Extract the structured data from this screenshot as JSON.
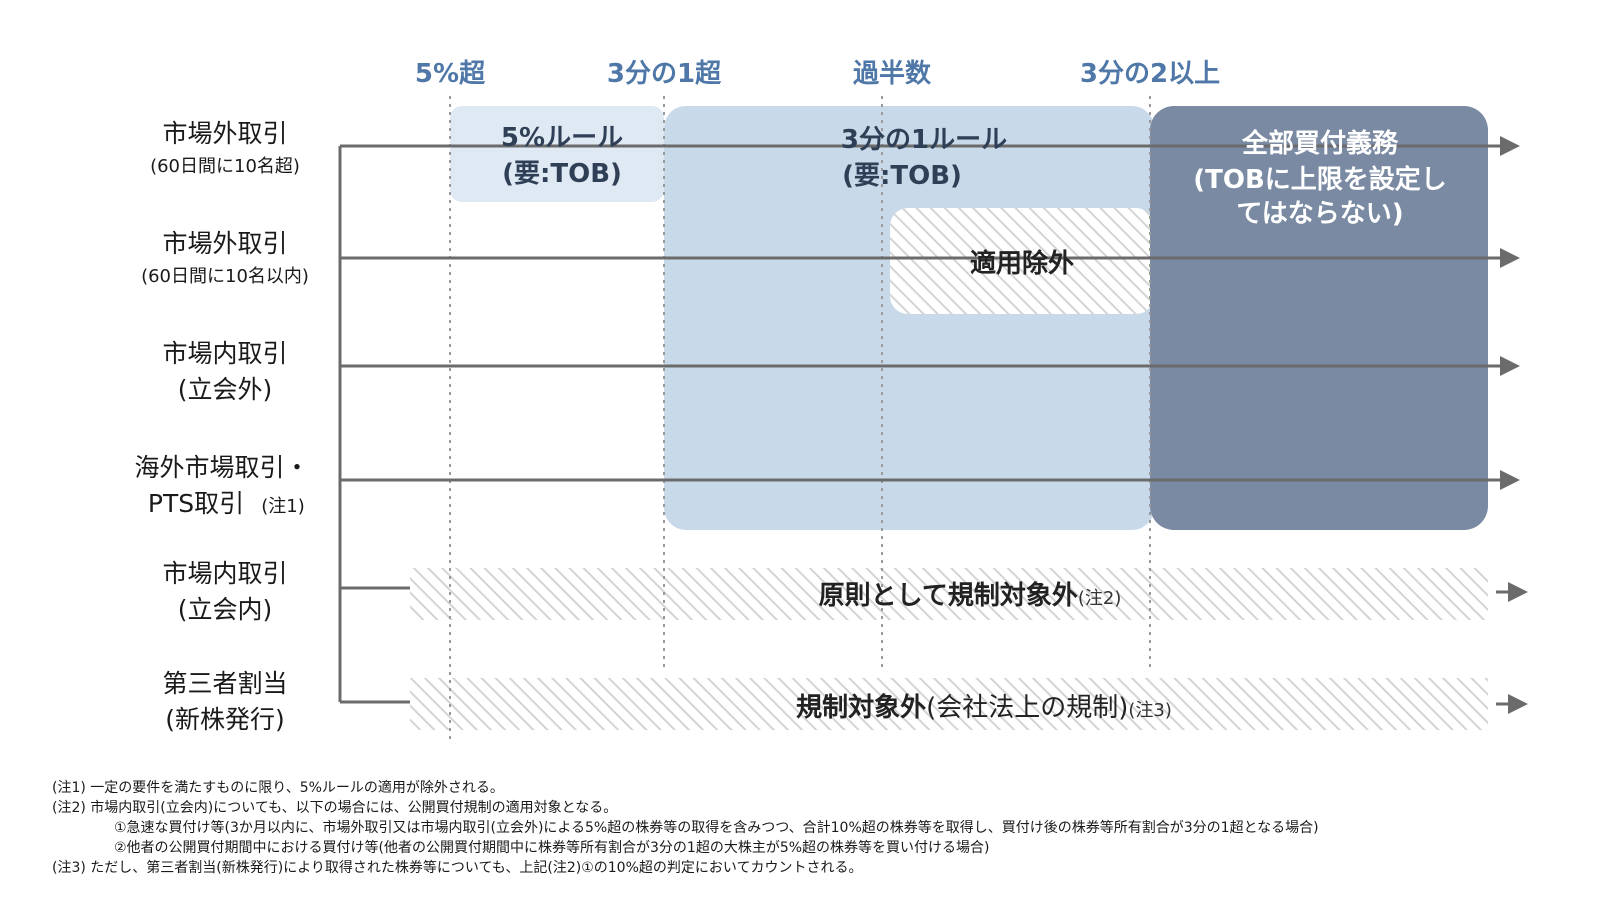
{
  "thresholds": [
    "5%超",
    "3分の1超",
    "過半数",
    "3分の2以上"
  ],
  "rows": [
    {
      "label": "市場外取引",
      "sub": "(60日間に10名超)"
    },
    {
      "label": "市場外取引",
      "sub": "(60日間に10名以内)"
    },
    {
      "label": "市場内取引",
      "sub": "(立会外)"
    },
    {
      "label": "海外市場取引・",
      "sub": "PTS取引",
      "note": "(注1)"
    },
    {
      "label": "市場内取引",
      "sub": "(立会内)"
    },
    {
      "label": "第三者割当",
      "sub": "(新株発行)"
    }
  ],
  "boxes": {
    "five_rule": {
      "line1": "5%ルール",
      "line2": "(要:TOB)"
    },
    "third_rule": {
      "line1": "3分の1ルール",
      "line2": "(要:TOB)"
    },
    "exempt": {
      "label": "適用除外"
    },
    "full_purchase": {
      "line1": "全部買付義務",
      "line2": "(TOBに上限を設定し",
      "line3": "てはならない)"
    }
  },
  "bands": {
    "band1": {
      "main": "原則として規制対象外",
      "note": "(注2)"
    },
    "band2": {
      "main": "規制対象外",
      "paren": "(会社法上の規制)",
      "note": "(注3)"
    }
  },
  "notes": [
    "(注1) 一定の要件を満たすものに限り、5%ルールの適用が除外される。",
    "(注2) 市場内取引(立会内)についても、以下の場合には、公開買付規制の適用対象となる。",
    "①急速な買付け等(3か月以内に、市場外取引又は市場内取引(立会外)による5%超の株券等の取得を含みつつ、合計10%超の株券等を取得し、買付け後の株券等所有割合が3分の1超となる場合)",
    "②他者の公開買付期間中における買付け等(他者の公開買付期間中に株券等所有割合が3分の1超の大株主が5%超の株券等を買い付ける場合)",
    "(注3) ただし、第三者割当(新株発行)により取得された株券等についても、上記(注2)①の10%超の判定においてカウントされる。"
  ],
  "colors": {
    "threshold_text": "#4f78a8",
    "light_box": "#dfe9f4",
    "mid_box": "#c8d9ea",
    "dark_box": "#7a8aa3",
    "line": "#6b6b6b"
  }
}
